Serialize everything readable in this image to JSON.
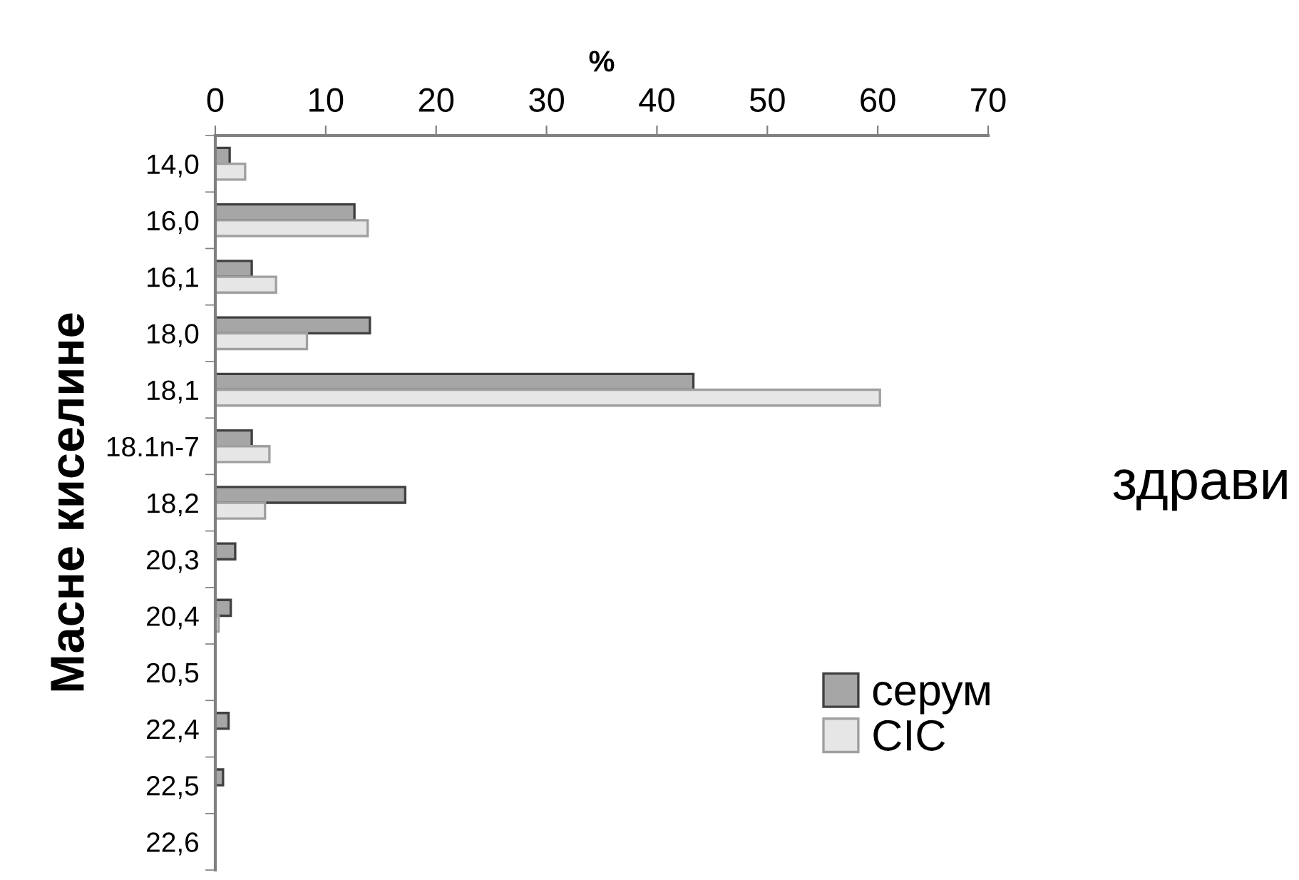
{
  "chart_data": {
    "type": "bar",
    "orientation": "horizontal",
    "xlabel": "%",
    "ylabel": "Масне киселине",
    "categories": [
      "14,0",
      "16,0",
      "16,1",
      "18,0",
      "18,1",
      "18.1n-7",
      "18,2",
      "20,3",
      "20,4",
      "20,5",
      "22,4",
      "22,5",
      "22,6"
    ],
    "series": [
      {
        "name": "серум",
        "color": "#a6a6a6",
        "values": [
          1.3,
          12.6,
          3.3,
          14.0,
          43.3,
          3.3,
          17.2,
          1.8,
          1.4,
          null,
          1.2,
          0.7,
          null
        ]
      },
      {
        "name": "CIC",
        "color": "#e6e6e6",
        "values": [
          2.7,
          13.8,
          5.5,
          8.3,
          60.2,
          4.9,
          4.5,
          null,
          0.3,
          null,
          0,
          0,
          0
        ]
      }
    ],
    "xlim": [
      0,
      70
    ],
    "xticks": [
      0,
      10,
      20,
      30,
      40,
      50,
      60,
      70
    ],
    "grid": false,
    "legend": "bottom right",
    "annotations": [
      "здрави"
    ]
  }
}
